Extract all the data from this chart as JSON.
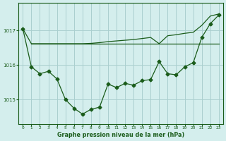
{
  "bg_color": "#d4eeed",
  "grid_color": "#aacfcf",
  "line_color": "#1a5c1a",
  "marker": "D",
  "marker_size": 2.5,
  "title": "Graphe pression niveau de la mer (hPa)",
  "xlim": [
    -0.5,
    23.5
  ],
  "ylim": [
    1014.3,
    1017.8
  ],
  "yticks": [
    1015,
    1016,
    1017
  ],
  "xticks": [
    0,
    1,
    2,
    3,
    4,
    5,
    6,
    7,
    8,
    9,
    10,
    11,
    12,
    13,
    14,
    15,
    16,
    17,
    18,
    19,
    20,
    21,
    22,
    23
  ],
  "series1_x": [
    0,
    1,
    2,
    3,
    4,
    5,
    6,
    7,
    8,
    9,
    10,
    11,
    12,
    13,
    14,
    15,
    16,
    17,
    18,
    19,
    20,
    21,
    22,
    23
  ],
  "series1_y": [
    1017.05,
    1015.95,
    1015.75,
    1015.82,
    1015.6,
    1015.0,
    1014.75,
    1014.58,
    1014.72,
    1014.78,
    1015.45,
    1015.35,
    1015.47,
    1015.42,
    1015.55,
    1015.58,
    1016.1,
    1015.75,
    1015.72,
    1015.95,
    1016.07,
    1016.8,
    1017.2,
    1017.45
  ],
  "series2_x": [
    0,
    1,
    2,
    3,
    4,
    5,
    6,
    7,
    8,
    9,
    10,
    11,
    12,
    13,
    14,
    15,
    16,
    17,
    18,
    19,
    20,
    21,
    22,
    23
  ],
  "series2_y": [
    1017.05,
    1016.62,
    1016.62,
    1016.62,
    1016.62,
    1016.62,
    1016.62,
    1016.62,
    1016.63,
    1016.65,
    1016.68,
    1016.7,
    1016.72,
    1016.74,
    1016.77,
    1016.8,
    1016.62,
    1016.85,
    1016.88,
    1016.92,
    1016.95,
    1017.15,
    1017.42,
    1017.48
  ],
  "series3_x": [
    1,
    23
  ],
  "series3_y": [
    1016.62,
    1016.62
  ]
}
